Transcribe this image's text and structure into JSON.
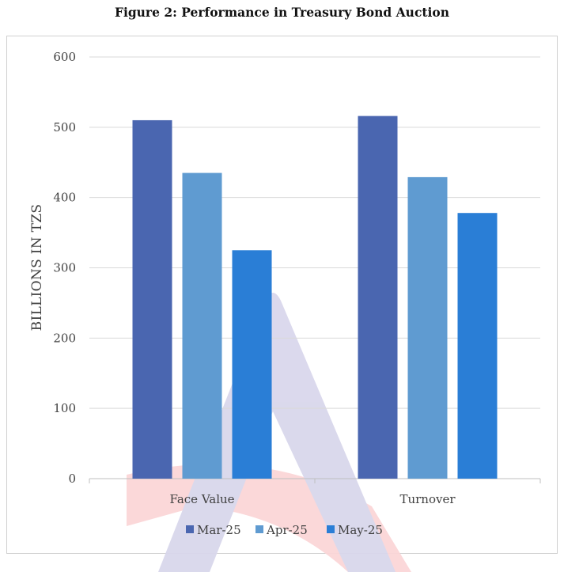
{
  "figure_title": "Figure 2: Performance in Treasury Bond Auction",
  "chart_data": {
    "type": "bar",
    "title": "Figure 2: Performance in Treasury Bond Auction",
    "categories": [
      "Face Value",
      "Turnover"
    ],
    "series": [
      {
        "name": "Mar-25",
        "color": "#4a66b0",
        "values": [
          510,
          516
        ]
      },
      {
        "name": "Apr-25",
        "color": "#5f9bd1",
        "values": [
          435,
          429
        ]
      },
      {
        "name": "May-25",
        "color": "#2a7ed6",
        "values": [
          325,
          378
        ]
      }
    ],
    "xlabel": "",
    "ylabel": "BILLIONS IN TZS",
    "ylim": [
      0,
      600
    ],
    "yticks": [
      0,
      100,
      200,
      300,
      400,
      500,
      600
    ],
    "grid": true,
    "legend": "bottom"
  }
}
